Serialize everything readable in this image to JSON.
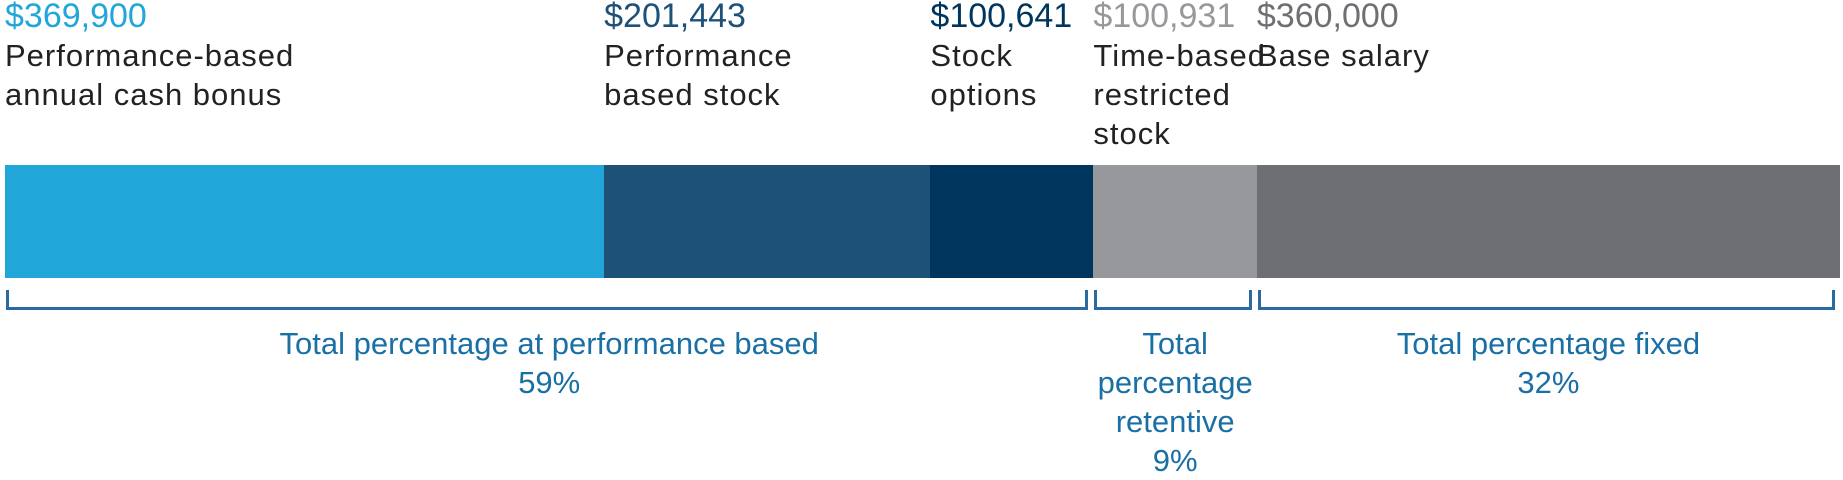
{
  "chart_data": {
    "type": "bar",
    "orientation": "horizontal-stacked",
    "segments": [
      {
        "amount": "$369,900",
        "value": 369900,
        "label": "Performance-based annual cash bonus",
        "label_lines": [
          "Performance-based",
          "annual cash bonus"
        ],
        "color": "#21a6da",
        "amount_color": "#21a6da"
      },
      {
        "amount": "$201,443",
        "value": 201443,
        "label": "Performance based stock",
        "label_lines": [
          "Performance",
          "based stock"
        ],
        "color": "#1d5178",
        "amount_color": "#1d5178"
      },
      {
        "amount": "$100,641",
        "value": 100641,
        "label": "Stock options",
        "label_lines": [
          "Stock",
          "options"
        ],
        "color": "#00355e",
        "amount_color": "#00355e"
      },
      {
        "amount": "$100,931",
        "value": 100931,
        "label": "Time-based restricted stock",
        "label_lines": [
          "Time-based",
          "restricted",
          "stock"
        ],
        "color": "#97989c",
        "amount_color": "#97989c"
      },
      {
        "amount": "$360,000",
        "value": 360000,
        "label": "Base salary",
        "label_lines": [
          "Base salary"
        ],
        "color": "#6e6f73",
        "amount_color": "#6e6f73"
      }
    ],
    "groups": [
      {
        "label_lines": [
          "Total percentage at performance based",
          "59%"
        ],
        "percent": 59,
        "segments": [
          0,
          1,
          2
        ]
      },
      {
        "label_lines": [
          "Total",
          "percentage",
          "retentive",
          "9%"
        ],
        "percent": 9,
        "segments": [
          3
        ]
      },
      {
        "label_lines": [
          "Total percentage fixed",
          "32%"
        ],
        "percent": 32,
        "segments": [
          4
        ]
      }
    ]
  }
}
